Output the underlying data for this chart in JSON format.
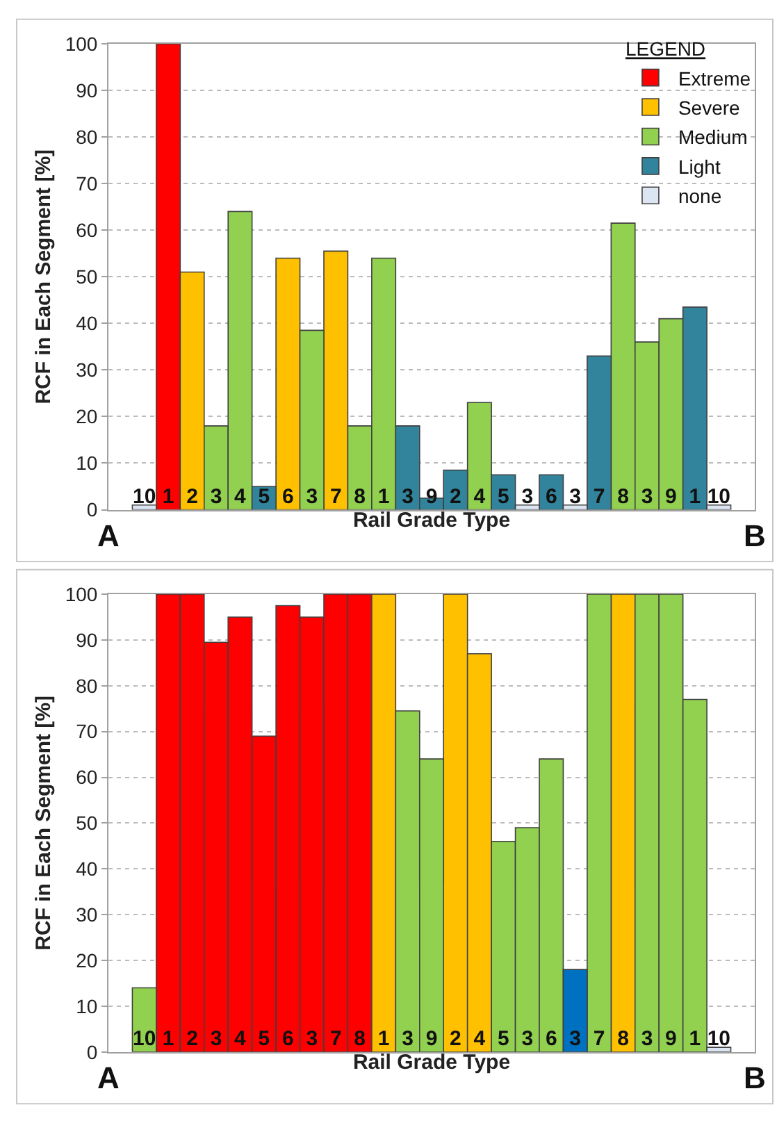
{
  "chart_data": [
    {
      "type": "bar",
      "xlabel": "Rail Grade Type",
      "ylabel": "RCF in Each Segment [%]",
      "legend_title": "LEGEND",
      "legend": "top right",
      "grid": "y",
      "ylim": [
        0,
        100
      ],
      "yticks": [
        0,
        10,
        20,
        30,
        40,
        50,
        60,
        70,
        80,
        90,
        100
      ],
      "categories": [
        "10",
        "1",
        "2",
        "3",
        "4",
        "5",
        "6",
        "3",
        "7",
        "8",
        "1",
        "3",
        "9",
        "2",
        "4",
        "5",
        "3",
        "6",
        "3",
        "7",
        "8",
        "3",
        "9",
        "1",
        "10"
      ],
      "series": [
        {
          "name": "Extreme",
          "color": "#ff0000",
          "values": [
            null,
            100,
            null,
            null,
            null,
            null,
            null,
            null,
            null,
            null,
            null,
            null,
            null,
            null,
            null,
            null,
            null,
            null,
            null,
            null,
            null,
            null,
            null,
            null,
            null
          ]
        },
        {
          "name": "Severe",
          "color": "#ffc000",
          "values": [
            null,
            null,
            51,
            null,
            null,
            null,
            54,
            null,
            55.5,
            null,
            null,
            null,
            null,
            null,
            null,
            null,
            null,
            null,
            null,
            null,
            null,
            null,
            null,
            null,
            null
          ]
        },
        {
          "name": "Medium",
          "color": "#92d050",
          "values": [
            null,
            null,
            null,
            18,
            64,
            null,
            null,
            38.5,
            null,
            18,
            54,
            null,
            null,
            null,
            23,
            null,
            null,
            null,
            null,
            null,
            61.5,
            36,
            41,
            null,
            null
          ]
        },
        {
          "name": "Light",
          "color": "#31849b",
          "values": [
            null,
            null,
            null,
            null,
            null,
            5,
            null,
            null,
            null,
            null,
            null,
            18,
            2.5,
            8.5,
            null,
            7.5,
            null,
            7.5,
            null,
            33,
            null,
            null,
            null,
            43.5,
            null
          ]
        },
        {
          "name": "none",
          "color": "#dce6f2",
          "values": [
            1,
            null,
            null,
            null,
            null,
            null,
            null,
            null,
            null,
            null,
            null,
            null,
            null,
            null,
            null,
            null,
            1,
            null,
            1,
            null,
            null,
            null,
            null,
            null,
            1
          ]
        }
      ],
      "annotations": [
        "A",
        "B"
      ]
    },
    {
      "type": "bar",
      "xlabel": "Rail Grade Type",
      "ylabel": "RCF in Each Segment [%]",
      "grid": "y",
      "ylim": [
        0,
        100
      ],
      "yticks": [
        0,
        10,
        20,
        30,
        40,
        50,
        60,
        70,
        80,
        90,
        100
      ],
      "categories": [
        "10",
        "1",
        "2",
        "3",
        "4",
        "5",
        "6",
        "3",
        "7",
        "8",
        "1",
        "3",
        "9",
        "2",
        "4",
        "5",
        "3",
        "6",
        "3",
        "7",
        "8",
        "3",
        "9",
        "1",
        "10"
      ],
      "series": [
        {
          "color": "#ff0000",
          "values": [
            null,
            100,
            100,
            89.5,
            95,
            69,
            97.5,
            95,
            100,
            100,
            null,
            null,
            null,
            null,
            null,
            null,
            null,
            null,
            null,
            null,
            null,
            null,
            null,
            null,
            null
          ]
        },
        {
          "color": "#ffc000",
          "values": [
            null,
            null,
            null,
            null,
            null,
            null,
            null,
            null,
            null,
            null,
            100,
            null,
            null,
            100,
            87,
            null,
            null,
            null,
            null,
            null,
            100,
            null,
            null,
            null,
            null
          ]
        },
        {
          "color": "#92d050",
          "values": [
            14,
            null,
            null,
            null,
            null,
            null,
            null,
            null,
            null,
            null,
            null,
            74.5,
            64,
            null,
            null,
            46,
            49,
            64,
            null,
            100,
            null,
            100,
            100,
            77,
            null
          ]
        },
        {
          "color": "#0070c0",
          "values": [
            null,
            null,
            null,
            null,
            null,
            null,
            null,
            null,
            null,
            null,
            null,
            null,
            null,
            null,
            null,
            null,
            null,
            null,
            18,
            null,
            null,
            null,
            null,
            null,
            null
          ]
        },
        {
          "color": "#dce6f2",
          "values": [
            null,
            null,
            null,
            null,
            null,
            null,
            null,
            null,
            null,
            null,
            null,
            null,
            null,
            null,
            null,
            null,
            null,
            null,
            null,
            null,
            null,
            null,
            null,
            null,
            1
          ]
        }
      ],
      "annotations": [
        "A",
        "B"
      ]
    }
  ]
}
